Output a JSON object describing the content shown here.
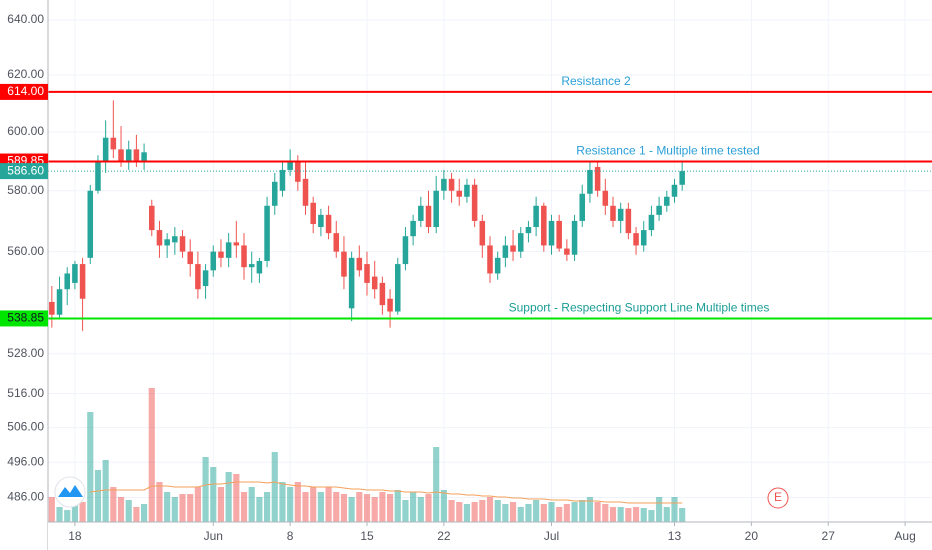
{
  "chart_data": {
    "type": "candlestick",
    "categories": [
      null,
      null,
      null,
      "18",
      null,
      null,
      null,
      null,
      null,
      null,
      null,
      null,
      null,
      null,
      null,
      null,
      null,
      null,
      null,
      null,
      null,
      "Jun",
      null,
      null,
      null,
      null,
      null,
      null,
      null,
      null,
      null,
      "8",
      null,
      null,
      null,
      null,
      null,
      null,
      null,
      null,
      null,
      "15",
      null,
      null,
      null,
      null,
      null,
      null,
      null,
      null,
      null,
      "22",
      null,
      null,
      null,
      null,
      null,
      null,
      null,
      null,
      null,
      null,
      null,
      null,
      null,
      "Jul",
      null,
      null,
      null,
      null,
      null,
      null,
      null,
      null,
      null,
      null,
      null,
      null,
      null,
      null,
      null,
      "13",
      null,
      null,
      null,
      null,
      null,
      null,
      null,
      null,
      null,
      "20",
      null,
      null,
      null,
      null,
      null,
      null,
      null,
      null,
      null,
      "27",
      null,
      null,
      null,
      null,
      null,
      null,
      null,
      null,
      null,
      "Aug",
      null,
      null,
      null
    ],
    "open": [
      544,
      540,
      548,
      550,
      556,
      558,
      580,
      590,
      598,
      594,
      590,
      594,
      590,
      575,
      567,
      562,
      563,
      565,
      560,
      556,
      549,
      554,
      560,
      558,
      563,
      562,
      555,
      553,
      557,
      575,
      580,
      587,
      590,
      584,
      576,
      568,
      572,
      566,
      560,
      542,
      558,
      556,
      552,
      550,
      545,
      541,
      556,
      565,
      570,
      575,
      568,
      580,
      584,
      580,
      578,
      582,
      570,
      562,
      553,
      558,
      562,
      560,
      566,
      568,
      575,
      562,
      570,
      561,
      559,
      570,
      579,
      588,
      580,
      575,
      570,
      574,
      566,
      562,
      567,
      572,
      575,
      578,
      582,
      null,
      null,
      null,
      null,
      null,
      null,
      null,
      null,
      null,
      null,
      null,
      null,
      null,
      null,
      null,
      null,
      null,
      null,
      null,
      null,
      null,
      null,
      null,
      null,
      null,
      null,
      null,
      null,
      null,
      null,
      null,
      null
    ],
    "high": [
      549,
      552,
      555,
      557,
      558,
      582,
      592,
      604,
      611,
      602,
      597,
      599,
      596,
      577,
      570,
      566,
      568,
      567,
      564,
      560,
      556,
      562,
      564,
      566,
      570,
      566,
      560,
      558,
      578,
      586,
      590,
      594,
      592,
      590,
      578,
      574,
      575,
      570,
      565,
      560,
      562,
      560,
      557,
      552,
      548,
      558,
      568,
      572,
      578,
      580,
      585,
      587,
      586,
      584,
      584,
      584,
      572,
      565,
      560,
      565,
      567,
      568,
      570,
      578,
      576,
      572,
      572,
      564,
      572,
      582,
      590,
      590,
      584,
      578,
      576,
      576,
      568,
      570,
      575,
      578,
      580,
      584,
      590,
      null,
      null,
      null,
      null,
      null,
      null,
      null,
      null,
      null,
      null,
      null,
      null,
      null,
      null,
      null,
      null,
      null,
      null,
      null,
      null,
      null,
      null,
      null,
      null,
      null,
      null,
      null,
      null,
      null,
      null,
      null,
      null
    ],
    "low": [
      536,
      539,
      543,
      548,
      535,
      556,
      579,
      586,
      591,
      588,
      587,
      588,
      587,
      565,
      558,
      558,
      559,
      558,
      552,
      545,
      545,
      552,
      555,
      555,
      558,
      551,
      550,
      550,
      555,
      572,
      578,
      585,
      580,
      572,
      566,
      565,
      564,
      558,
      548,
      538,
      552,
      546,
      545,
      540,
      536,
      540,
      554,
      562,
      568,
      566,
      566,
      577,
      576,
      575,
      576,
      568,
      558,
      550,
      551,
      555,
      557,
      558,
      563,
      565,
      560,
      559,
      560,
      557,
      557,
      568,
      576,
      578,
      572,
      568,
      566,
      564,
      559,
      560,
      565,
      570,
      573,
      576,
      580,
      null,
      null,
      null,
      null,
      null,
      null,
      null,
      null,
      null,
      null,
      null,
      null,
      null,
      null,
      null,
      null,
      null,
      null,
      null,
      null,
      null,
      null,
      null,
      null,
      null,
      null,
      null,
      null,
      null,
      null,
      null,
      null
    ],
    "close": [
      540,
      548,
      553,
      556,
      545,
      580,
      590,
      598,
      594,
      590,
      594,
      590,
      593,
      567,
      562,
      564,
      565,
      560,
      556,
      548,
      554,
      560,
      558,
      563,
      562,
      555,
      556,
      557,
      575,
      583,
      587,
      590,
      583,
      575,
      569,
      572,
      566,
      560,
      552,
      558,
      554,
      550,
      548,
      543,
      541,
      556,
      565,
      570,
      575,
      568,
      580,
      584,
      580,
      578,
      582,
      570,
      562,
      553,
      558,
      562,
      560,
      566,
      568,
      575,
      562,
      570,
      561,
      559,
      570,
      579,
      587,
      580,
      575,
      570,
      574,
      566,
      562,
      567,
      572,
      575,
      578,
      582,
      586.6,
      null,
      null,
      null,
      null,
      null,
      null,
      null,
      null,
      null,
      null,
      null,
      null,
      null,
      null,
      null,
      null,
      null,
      null,
      null,
      null,
      null,
      null,
      null,
      null,
      null,
      null,
      null,
      null,
      null,
      null,
      null,
      null
    ],
    "volume": [
      25,
      15,
      12,
      30,
      20,
      110,
      52,
      62,
      35,
      25,
      22,
      15,
      18,
      134,
      40,
      30,
      25,
      28,
      28,
      35,
      65,
      55,
      35,
      50,
      48,
      30,
      35,
      25,
      30,
      70,
      40,
      35,
      40,
      30,
      35,
      30,
      35,
      30,
      28,
      25,
      30,
      28,
      25,
      30,
      28,
      32,
      22,
      30,
      25,
      28,
      75,
      32,
      22,
      20,
      18,
      20,
      22,
      25,
      22,
      18,
      20,
      15,
      18,
      22,
      18,
      20,
      15,
      18,
      20,
      22,
      25,
      20,
      18,
      15,
      15,
      14,
      15,
      14,
      12,
      25,
      15,
      25,
      14,
      null,
      null,
      null,
      null,
      null,
      null,
      null,
      null,
      null,
      null,
      null,
      null,
      null,
      null,
      null,
      null,
      null,
      null,
      null,
      null,
      null,
      null,
      null,
      null,
      null,
      null,
      null,
      null,
      null,
      null,
      null,
      null
    ],
    "volume_ma": [
      null,
      null,
      null,
      null,
      null,
      30,
      31,
      32,
      32,
      32,
      32,
      32,
      32,
      36,
      36,
      36,
      35,
      35,
      35,
      35,
      37,
      38,
      38,
      39,
      40,
      40,
      40,
      40,
      39,
      40,
      38,
      37,
      36,
      36,
      35,
      35,
      35,
      35,
      34,
      33,
      33,
      32,
      32,
      32,
      31,
      31,
      30,
      30,
      30,
      29,
      30,
      29,
      28,
      28,
      27,
      27,
      26,
      26,
      25,
      25,
      24,
      24,
      23,
      23,
      23,
      22,
      22,
      22,
      21,
      21,
      21,
      21,
      20,
      20,
      20,
      19,
      19,
      19,
      19,
      19,
      19,
      19,
      19,
      null,
      null,
      null,
      null,
      null,
      null,
      null,
      null,
      null,
      null,
      null,
      null,
      null,
      null,
      null,
      null,
      null,
      null,
      null,
      null,
      null,
      null,
      null,
      null,
      null,
      null,
      null,
      null,
      null,
      null,
      null,
      null
    ],
    "up_color": "#26a69a",
    "down_color": "#ef5350",
    "ma_color": "#f5a05a",
    "ylim": [
      479.2,
      647.4
    ],
    "log_scale": true,
    "grid": true,
    "yticks": [
      {
        "value": 640,
        "label": "640.00"
      },
      {
        "value": 620,
        "label": "620.00"
      },
      {
        "value": 600,
        "label": "600.00"
      },
      {
        "value": 580,
        "label": "580.00"
      },
      {
        "value": 560,
        "label": "560.00"
      },
      {
        "value": 528,
        "label": "528.00"
      },
      {
        "value": 516,
        "label": "516.00"
      },
      {
        "value": 506,
        "label": "506.00"
      },
      {
        "value": 496,
        "label": "496.00"
      },
      {
        "value": 486,
        "label": "486.00"
      }
    ],
    "levels": [
      {
        "value": 614,
        "label": "614.00",
        "color": "#ff0000",
        "note": "Resistance 2",
        "note_color": "#2a9fd8"
      },
      {
        "value": 589.85,
        "label": "589.85",
        "color": "#ff0000",
        "note": "Resistance 1 - Multiple time tested",
        "note_color": "#2a9fd8"
      },
      {
        "value": 586.6,
        "label": "586.60",
        "color": "#26a69a"
      },
      {
        "value": 538.85,
        "label": "538.85",
        "color": "#00e600",
        "note": "Support - Respecting Support Line Multiple times",
        "note_color": "#1a9e95"
      }
    ],
    "earnings_marker": "E"
  }
}
